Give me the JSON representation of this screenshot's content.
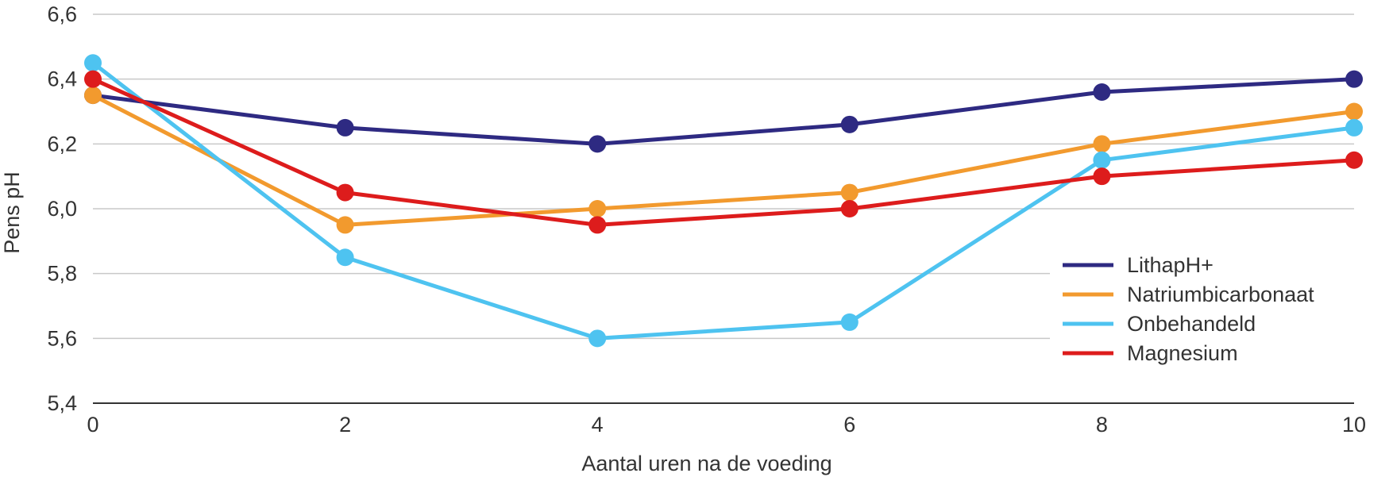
{
  "chart_data": {
    "type": "line",
    "title": "",
    "xlabel": "Aantal uren na de voeding",
    "ylabel": "Pens pH",
    "x": [
      0,
      2,
      4,
      6,
      8,
      10
    ],
    "x_tick_labels": [
      "0",
      "2",
      "4",
      "6",
      "8",
      "10"
    ],
    "y_tick_values": [
      5.4,
      5.6,
      5.8,
      6.0,
      6.2,
      6.4,
      6.6
    ],
    "y_tick_labels": [
      "5,4",
      "5,6",
      "5,8",
      "6,0",
      "6,2",
      "6,4",
      "6,6"
    ],
    "xlim": [
      0,
      10
    ],
    "ylim": [
      5.4,
      6.6
    ],
    "grid": "horizontal",
    "legend_position": "right",
    "series": [
      {
        "name": "LithapH+",
        "color": "#2e2a82",
        "values": [
          6.35,
          6.25,
          6.2,
          6.26,
          6.36,
          6.4
        ]
      },
      {
        "name": "Natriumbicarbonaat",
        "color": "#f29a2e",
        "values": [
          6.35,
          5.95,
          6.0,
          6.05,
          6.2,
          6.3
        ]
      },
      {
        "name": "Onbehandeld",
        "color": "#4ec3f0",
        "values": [
          6.45,
          5.85,
          5.6,
          5.65,
          6.15,
          6.25
        ]
      },
      {
        "name": "Magnesium",
        "color": "#dd1c1c",
        "values": [
          6.4,
          6.05,
          5.95,
          6.0,
          6.1,
          6.15
        ]
      }
    ]
  }
}
